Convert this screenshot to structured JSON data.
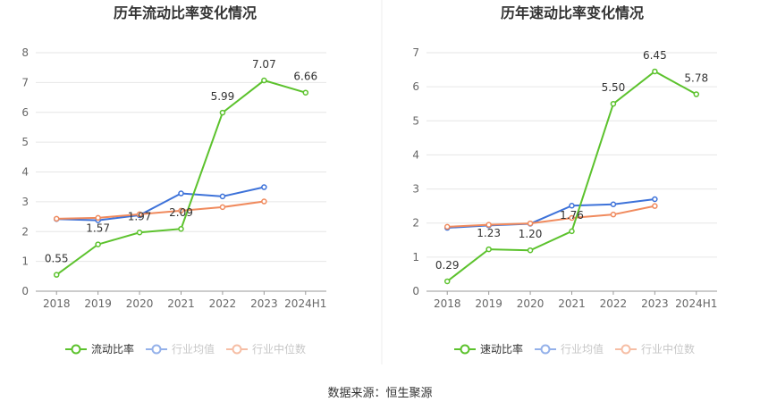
{
  "colors": {
    "series": [
      "#5cc22d",
      "#3d72d9",
      "#f08a5d"
    ],
    "grid": "#e6e6e6",
    "axis": "#666666",
    "title": "#333333",
    "legend_text": "#333333",
    "legend_inactive": "#999999",
    "divider": "#eeeeee"
  },
  "source": "数据来源：恒生聚源",
  "chart_data": [
    {
      "type": "line",
      "title": "历年流动比率变化情况",
      "xlabel": "",
      "ylabel": "",
      "categories": [
        "2018",
        "2019",
        "2020",
        "2021",
        "2022",
        "2023",
        "2024H1"
      ],
      "ylim": [
        0,
        8
      ],
      "yticks": [
        0,
        1,
        2,
        3,
        4,
        5,
        6,
        7,
        8
      ],
      "grid": true,
      "legend_position": "bottom-center",
      "series": [
        {
          "name": "流动比率",
          "values": [
            0.55,
            1.57,
            1.97,
            2.09,
            5.99,
            7.07,
            6.66
          ],
          "labels": [
            "0.55",
            "1.57",
            "1.97",
            "2.09",
            "5.99",
            "7.07",
            "6.66"
          ],
          "show_labels": true
        },
        {
          "name": "行业均值",
          "values": [
            2.42,
            2.38,
            2.55,
            3.28,
            3.18,
            3.49,
            null
          ],
          "show_labels": false
        },
        {
          "name": "行业中位数",
          "values": [
            2.43,
            2.46,
            2.58,
            2.7,
            2.82,
            3.01,
            null
          ],
          "show_labels": false
        }
      ]
    },
    {
      "type": "line",
      "title": "历年速动比率变化情况",
      "xlabel": "",
      "ylabel": "",
      "categories": [
        "2018",
        "2019",
        "2020",
        "2021",
        "2022",
        "2023",
        "2024H1"
      ],
      "ylim": [
        0,
        7
      ],
      "yticks": [
        0,
        1,
        2,
        3,
        4,
        5,
        6,
        7
      ],
      "grid": true,
      "legend_position": "bottom-center",
      "series": [
        {
          "name": "速动比率",
          "values": [
            0.29,
            1.23,
            1.2,
            1.76,
            5.5,
            6.45,
            5.78
          ],
          "labels": [
            "0.29",
            "1.23",
            "1.20",
            "1.76",
            "5.50",
            "6.45",
            "5.78"
          ],
          "show_labels": true
        },
        {
          "name": "行业均值",
          "values": [
            1.86,
            1.93,
            1.98,
            2.51,
            2.55,
            2.7,
            null
          ],
          "show_labels": false
        },
        {
          "name": "行业中位数",
          "values": [
            1.89,
            1.95,
            1.99,
            2.15,
            2.25,
            2.5,
            null
          ],
          "show_labels": false
        }
      ]
    }
  ]
}
